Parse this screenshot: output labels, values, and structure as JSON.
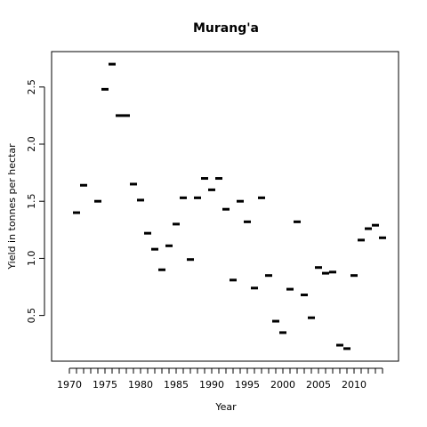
{
  "chart_data": {
    "type": "scatter",
    "title": "Murang'a",
    "x_label": "Year",
    "y_label": "Yield in tonnes per hectar",
    "x": [
      1971,
      1972,
      1973,
      1974,
      1975,
      1976,
      1977,
      1978,
      1979,
      1980,
      1981,
      1982,
      1983,
      1984,
      1985,
      1986,
      1987,
      1988,
      1989,
      1990,
      1991,
      1992,
      1993,
      1994,
      1995,
      1996,
      1997,
      1998,
      1999,
      2000,
      2001,
      2002,
      2003,
      2004,
      2005,
      2006,
      2007,
      2008,
      2009,
      2010,
      2011,
      2012,
      2013,
      2014
    ],
    "values": [
      1.4,
      1.64,
      null,
      1.5,
      2.48,
      2.7,
      2.25,
      2.25,
      1.65,
      1.51,
      1.22,
      1.08,
      0.9,
      1.11,
      1.3,
      1.53,
      0.99,
      1.53,
      1.7,
      1.6,
      1.7,
      1.43,
      0.81,
      1.5,
      1.32,
      0.74,
      1.53,
      0.85,
      0.45,
      0.35,
      0.73,
      1.32,
      0.68,
      0.48,
      0.92,
      0.87,
      0.88,
      0.24,
      0.21,
      0.85,
      1.16,
      1.26,
      1.29,
      1.18
    ],
    "color": "#000000",
    "xlim": [
      1967.5,
      2016.25
    ],
    "ylim": [
      0.1,
      2.81
    ],
    "xticks": [
      1970,
      1975,
      1980,
      1985,
      1990,
      1995,
      2000,
      2005,
      2010
    ],
    "xminor_ticks": [
      1970,
      1971,
      1972,
      1973,
      1974,
      1975,
      1976,
      1977,
      1978,
      1979,
      1980,
      1981,
      1982,
      1983,
      1984,
      1985,
      1986,
      1987,
      1988,
      1989,
      1990,
      1991,
      1992,
      1993,
      1994,
      1995,
      1996,
      1997,
      1998,
      1999,
      2000,
      2001,
      2002,
      2003,
      2004,
      2005,
      2006,
      2007,
      2008,
      2009,
      2010,
      2011,
      2012,
      2013,
      2014
    ],
    "yticks": [
      0.5,
      1.0,
      1.5,
      2.0,
      2.5
    ]
  }
}
